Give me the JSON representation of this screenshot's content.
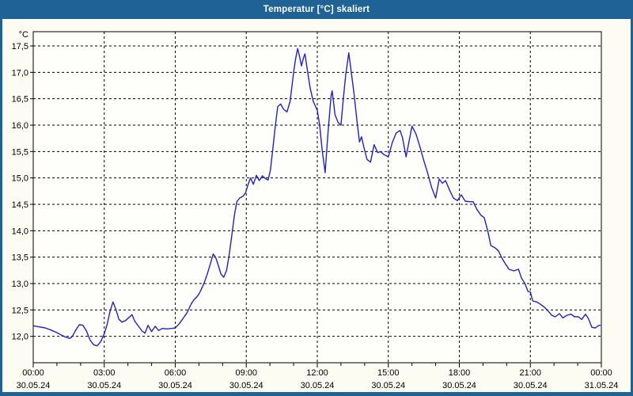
{
  "window": {
    "title": "Temperatur [°C] skaliert"
  },
  "colors": {
    "titlebar_bg": "#1e6296",
    "window_border": "#1e6296",
    "margin_bg": "#fcfcf3",
    "plot_bg": "#fefefa",
    "grid": "#000000",
    "axis": "#000000",
    "line": "#2222c4",
    "title_text": "#ffffff",
    "label_text": "#000000"
  },
  "chart_data": {
    "type": "line",
    "title": "Temperatur [°C] skaliert",
    "y_unit_label": "°C",
    "grid": true,
    "legend": "none",
    "ylim": [
      11.5,
      17.77
    ],
    "xlim_hours": [
      0,
      24
    ],
    "y_tick_values": [
      17.5,
      17.0,
      16.5,
      16.0,
      15.5,
      15.0,
      14.5,
      14.0,
      13.5,
      13.0,
      12.5,
      12.0
    ],
    "y_tick_labels": [
      "17,5",
      "17,0",
      "16,5",
      "16,0",
      "15,5",
      "15,0",
      "14,5",
      "14,0",
      "13,5",
      "13,0",
      "12,5",
      "12,0"
    ],
    "x_ticks": {
      "hours": [
        0,
        3,
        6,
        9,
        12,
        15,
        18,
        21,
        24
      ],
      "times": [
        "00:00",
        "03:00",
        "06:00",
        "09:00",
        "12:00",
        "15:00",
        "18:00",
        "21:00",
        "00:00"
      ],
      "dates": [
        "30.05.24",
        "30.05.24",
        "30.05.24",
        "30.05.24",
        "30.05.24",
        "30.05.24",
        "30.05.24",
        "30.05.24",
        "31.05.24"
      ]
    },
    "minor_x_tick_every_hours": 1,
    "series": [
      {
        "x_hours": [
          0,
          0.25,
          0.5,
          0.75,
          1,
          1.2,
          1.4,
          1.55,
          1.65,
          1.8,
          1.95,
          2.1,
          2.25,
          2.4,
          2.55,
          2.7,
          2.85,
          3,
          3.12,
          3.25,
          3.37,
          3.5,
          3.62,
          3.75,
          3.9,
          4.05,
          4.17,
          4.3,
          4.45,
          4.6,
          4.72,
          4.85,
          5,
          5.15,
          5.3,
          5.45,
          5.65,
          5.85,
          6,
          6.17,
          6.33,
          6.5,
          6.67,
          6.8,
          6.9,
          7,
          7.1,
          7.2,
          7.33,
          7.42,
          7.5,
          7.6,
          7.7,
          7.83,
          7.93,
          8.05,
          8.17,
          8.28,
          8.4,
          8.5,
          8.6,
          8.72,
          8.85,
          8.97,
          9.08,
          9.18,
          9.3,
          9.43,
          9.55,
          9.68,
          9.8,
          9.92,
          10.02,
          10.12,
          10.22,
          10.33,
          10.45,
          10.58,
          10.72,
          10.85,
          11,
          11.08,
          11.17,
          11.25,
          11.33,
          11.42,
          11.48,
          11.58,
          11.7,
          11.83,
          12,
          12.1,
          12.2,
          12.33,
          12.45,
          12.58,
          12.63,
          12.75,
          12.88,
          13,
          13.1,
          13.2,
          13.33,
          13.45,
          13.55,
          13.67,
          13.78,
          13.87,
          13.97,
          14.1,
          14.25,
          14.4,
          14.55,
          14.67,
          14.82,
          15,
          15.17,
          15.33,
          15.5,
          15.6,
          15.75,
          15.9,
          16,
          16.17,
          16.33,
          16.5,
          16.67,
          16.83,
          17,
          17.15,
          17.28,
          17.42,
          17.58,
          17.75,
          17.92,
          18.08,
          18.25,
          18.42,
          18.58,
          18.75,
          18.92,
          19.05,
          19.2,
          19.33,
          19.5,
          19.65,
          19.8,
          19.95,
          20.1,
          20.3,
          20.5,
          20.62,
          20.77,
          20.9,
          21,
          21.1,
          21.28,
          21.45,
          21.6,
          21.75,
          21.9,
          22.05,
          22.23,
          22.38,
          22.55,
          22.72,
          22.87,
          23.03,
          23.17,
          23.33,
          23.45,
          23.6,
          23.75,
          23.87,
          23.95
        ],
        "values": [
          12.2,
          12.18,
          12.16,
          12.12,
          12.07,
          12.02,
          11.98,
          11.96,
          12,
          12.12,
          12.22,
          12.21,
          12.1,
          11.93,
          11.84,
          11.82,
          11.9,
          12.05,
          12.22,
          12.48,
          12.65,
          12.5,
          12.32,
          12.27,
          12.3,
          12.36,
          12.41,
          12.28,
          12.19,
          12.1,
          12.06,
          12.21,
          12.09,
          12.19,
          12.11,
          12.15,
          12.14,
          12.15,
          12.16,
          12.24,
          12.34,
          12.45,
          12.61,
          12.7,
          12.74,
          12.8,
          12.89,
          12.99,
          13.15,
          13.28,
          13.4,
          13.56,
          13.5,
          13.33,
          13.18,
          13.12,
          13.25,
          13.55,
          13.95,
          14.3,
          14.55,
          14.62,
          14.65,
          14.72,
          14.88,
          15,
          14.88,
          15.05,
          14.95,
          15.04,
          14.99,
          14.96,
          15.15,
          15.55,
          15.95,
          16.35,
          16.4,
          16.3,
          16.25,
          16.45,
          17,
          17.25,
          17.45,
          17.3,
          17.12,
          17.28,
          17.35,
          17.05,
          16.7,
          16.45,
          16.28,
          16,
          15.55,
          15.1,
          15.85,
          16.55,
          16.65,
          16.2,
          16.05,
          16,
          16.5,
          16.95,
          17.37,
          16.95,
          16.6,
          16.1,
          15.68,
          15.78,
          15.58,
          15.35,
          15.3,
          15.63,
          15.48,
          15.5,
          15.44,
          15.4,
          15.67,
          15.85,
          15.9,
          15.76,
          15.4,
          15.75,
          15.98,
          15.83,
          15.6,
          15.33,
          15.08,
          14.82,
          14.62,
          14.98,
          14.9,
          14.95,
          14.78,
          14.62,
          14.57,
          14.68,
          14.56,
          14.55,
          14.55,
          14.4,
          14.29,
          14.25,
          14,
          13.72,
          13.68,
          13.62,
          13.48,
          13.37,
          13.27,
          13.24,
          13.27,
          13.11,
          13,
          12.85,
          12.84,
          12.67,
          12.65,
          12.6,
          12.55,
          12.48,
          12.4,
          12.37,
          12.43,
          12.35,
          12.4,
          12.42,
          12.37,
          12.37,
          12.32,
          12.42,
          12.34,
          12.17,
          12.16,
          12.2,
          12.21
        ]
      }
    ]
  }
}
